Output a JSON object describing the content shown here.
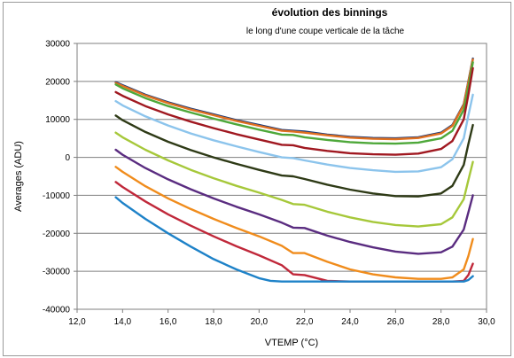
{
  "chart_data": {
    "type": "line",
    "title": "évolution des binnings",
    "subtitle": "le long d'une coupe verticale de la tâche",
    "xlabel": "VTEMP (°C)",
    "ylabel": "Averages (ADU)",
    "xlim": [
      12.0,
      30.0
    ],
    "ylim": [
      -40000,
      30000
    ],
    "xticks": [
      "12,0",
      "14,0",
      "16,0",
      "18,0",
      "20,0",
      "22,0",
      "24,0",
      "26,0",
      "28,0",
      "30,0"
    ],
    "yticks": [
      "-40000",
      "-30000",
      "-20000",
      "-10000",
      "0",
      "10000",
      "20000",
      "30000"
    ],
    "grid": "horizontal",
    "legend": "none",
    "series": [
      {
        "color": "#1a3a7a",
        "x": [
          13.7,
          14.0,
          15.0,
          16.0,
          17.0,
          18.0,
          19.0,
          20.0,
          21.0,
          21.5,
          22.0,
          23.0,
          24.0,
          25.0,
          26.0,
          27.0,
          28.0,
          28.5,
          29.0,
          29.2,
          29.4
        ],
        "y": [
          19800,
          19000,
          16500,
          14500,
          12800,
          11300,
          9800,
          8500,
          7200,
          7000,
          6800,
          6000,
          5400,
          5100,
          5000,
          5300,
          6500,
          8500,
          14000,
          20000,
          26000
        ]
      },
      {
        "color": "#e07020",
        "x": [
          13.7,
          14.0,
          15.0,
          16.0,
          17.0,
          18.0,
          19.0,
          20.0,
          21.0,
          21.5,
          22.0,
          23.0,
          24.0,
          25.0,
          26.0,
          27.0,
          28.0,
          28.5,
          29.0,
          29.2,
          29.4
        ],
        "y": [
          19600,
          18800,
          16300,
          14300,
          12600,
          11100,
          9600,
          8300,
          7000,
          6800,
          6500,
          5800,
          5200,
          4900,
          4800,
          5100,
          6300,
          8300,
          13800,
          19800,
          25800
        ]
      },
      {
        "color": "#4ea83a",
        "x": [
          13.7,
          14.0,
          15.0,
          16.0,
          17.0,
          18.0,
          19.0,
          20.0,
          21.0,
          21.5,
          22.0,
          23.0,
          24.0,
          25.0,
          26.0,
          27.0,
          28.0,
          28.5,
          29.0,
          29.2,
          29.4
        ],
        "y": [
          19200,
          18200,
          15600,
          13500,
          11800,
          10200,
          8700,
          7300,
          6000,
          5900,
          5300,
          4600,
          4000,
          3700,
          3600,
          3900,
          5000,
          7000,
          12500,
          18500,
          25000
        ]
      },
      {
        "color": "#a01820",
        "x": [
          13.7,
          14.0,
          15.0,
          16.0,
          17.0,
          18.0,
          19.0,
          20.0,
          21.0,
          21.5,
          22.0,
          23.0,
          24.0,
          25.0,
          26.0,
          27.0,
          28.0,
          28.5,
          29.0,
          29.2,
          29.4
        ],
        "y": [
          17200,
          16200,
          13500,
          11300,
          9400,
          7700,
          6100,
          4700,
          3300,
          3200,
          2500,
          1700,
          1100,
          800,
          700,
          1000,
          2200,
          4300,
          10000,
          16500,
          23500
        ]
      },
      {
        "color": "#8cc4ec",
        "x": [
          13.7,
          14.0,
          15.0,
          16.0,
          17.0,
          18.0,
          19.0,
          20.0,
          21.0,
          21.5,
          22.0,
          23.0,
          24.0,
          25.0,
          26.0,
          27.0,
          28.0,
          28.5,
          29.0,
          29.2,
          29.4
        ],
        "y": [
          14800,
          13700,
          10800,
          8400,
          6300,
          4500,
          2900,
          1400,
          0,
          -200,
          -800,
          -1900,
          -2800,
          -3400,
          -3800,
          -3700,
          -2600,
          -500,
          5000,
          11000,
          16500
        ]
      },
      {
        "color": "#2e3a16",
        "x": [
          13.7,
          14.0,
          15.0,
          16.0,
          17.0,
          18.0,
          19.0,
          20.0,
          21.0,
          21.5,
          22.0,
          23.0,
          24.0,
          25.0,
          26.0,
          27.0,
          28.0,
          28.5,
          29.0,
          29.2,
          29.4
        ],
        "y": [
          11000,
          9800,
          6700,
          4100,
          1900,
          0,
          -1700,
          -3300,
          -4800,
          -5000,
          -5700,
          -7200,
          -8500,
          -9500,
          -10200,
          -10300,
          -9500,
          -7500,
          -2000,
          3500,
          8500
        ]
      },
      {
        "color": "#a6c83a",
        "x": [
          13.7,
          14.0,
          15.0,
          16.0,
          17.0,
          18.0,
          19.0,
          20.0,
          21.0,
          21.5,
          22.0,
          23.0,
          24.0,
          25.0,
          26.0,
          27.0,
          28.0,
          28.5,
          29.0,
          29.2,
          29.4
        ],
        "y": [
          6500,
          5300,
          2000,
          -800,
          -3300,
          -5500,
          -7500,
          -9300,
          -11200,
          -12300,
          -12500,
          -14300,
          -15800,
          -17000,
          -17800,
          -18200,
          -17600,
          -15800,
          -11000,
          -6000,
          -1200
        ]
      },
      {
        "color": "#5a2c80",
        "x": [
          13.7,
          14.0,
          15.0,
          16.0,
          17.0,
          18.0,
          19.0,
          20.0,
          21.0,
          21.5,
          22.0,
          23.0,
          24.0,
          25.0,
          26.0,
          27.0,
          28.0,
          28.5,
          29.0,
          29.2,
          29.4
        ],
        "y": [
          2000,
          700,
          -2800,
          -5800,
          -8400,
          -10800,
          -13000,
          -15000,
          -17200,
          -18500,
          -18600,
          -20600,
          -22300,
          -23700,
          -24800,
          -25400,
          -25000,
          -23500,
          -19000,
          -14500,
          -10000
        ]
      },
      {
        "color": "#f08c1c",
        "x": [
          13.7,
          14.0,
          15.0,
          16.0,
          17.0,
          18.0,
          19.0,
          20.0,
          21.0,
          21.5,
          22.0,
          23.0,
          24.0,
          25.0,
          26.0,
          27.0,
          28.0,
          28.5,
          29.0,
          29.2,
          29.4
        ],
        "y": [
          -2500,
          -3800,
          -7600,
          -10800,
          -13600,
          -16200,
          -18600,
          -20800,
          -23300,
          -25200,
          -25200,
          -27500,
          -29500,
          -30800,
          -31600,
          -32000,
          -32000,
          -31600,
          -29500,
          -26000,
          -21500
        ]
      },
      {
        "color": "#c0283a",
        "x": [
          13.7,
          14.0,
          15.0,
          16.0,
          17.0,
          18.0,
          19.0,
          20.0,
          21.0,
          21.5,
          22.0,
          23.0,
          24.0,
          25.0,
          26.0,
          27.0,
          28.0,
          28.5,
          29.0,
          29.2,
          29.4
        ],
        "y": [
          -6500,
          -7800,
          -11600,
          -15000,
          -18000,
          -20800,
          -23400,
          -25800,
          -28400,
          -30800,
          -31000,
          -32500,
          -32700,
          -32700,
          -32700,
          -32700,
          -32700,
          -32700,
          -32500,
          -31000,
          -28000
        ]
      },
      {
        "color": "#1e82c8",
        "x": [
          13.7,
          14.0,
          15.0,
          16.0,
          17.0,
          18.0,
          19.0,
          20.0,
          20.5,
          21.0,
          22.0,
          23.0,
          24.0,
          25.0,
          26.0,
          27.0,
          28.0,
          28.5,
          29.0,
          29.2,
          29.4
        ],
        "y": [
          -10500,
          -12000,
          -16200,
          -20000,
          -23500,
          -26800,
          -29500,
          -31800,
          -32500,
          -32700,
          -32700,
          -32700,
          -32700,
          -32700,
          -32700,
          -32700,
          -32700,
          -32700,
          -32700,
          -32300,
          -31300
        ]
      }
    ]
  }
}
